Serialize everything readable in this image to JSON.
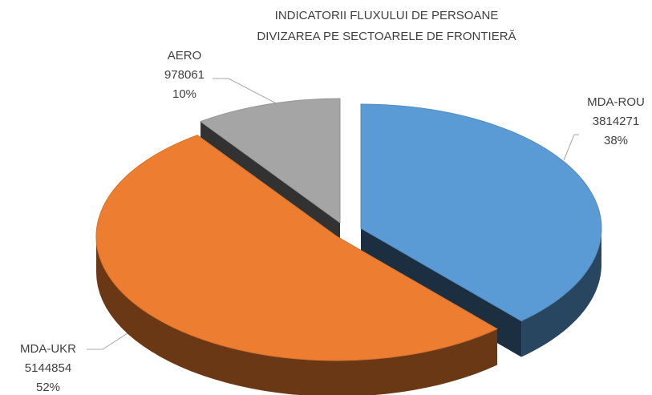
{
  "chart_data": {
    "type": "pie",
    "title": "INDICATORII FLUXULUI DE PERSOANE",
    "subtitle": "DIVIZAREA PE SECTOARELE DE FRONTIERĂ",
    "categories": [
      "MDA-ROU",
      "MDA-UKR",
      "AERO"
    ],
    "values": [
      3814271,
      5144854,
      978061
    ],
    "percent_labels": [
      "38%",
      "52%",
      "10%"
    ],
    "colors": [
      "#5b9bd5",
      "#ed7d31",
      "#a5a5a5"
    ],
    "legend": false
  }
}
